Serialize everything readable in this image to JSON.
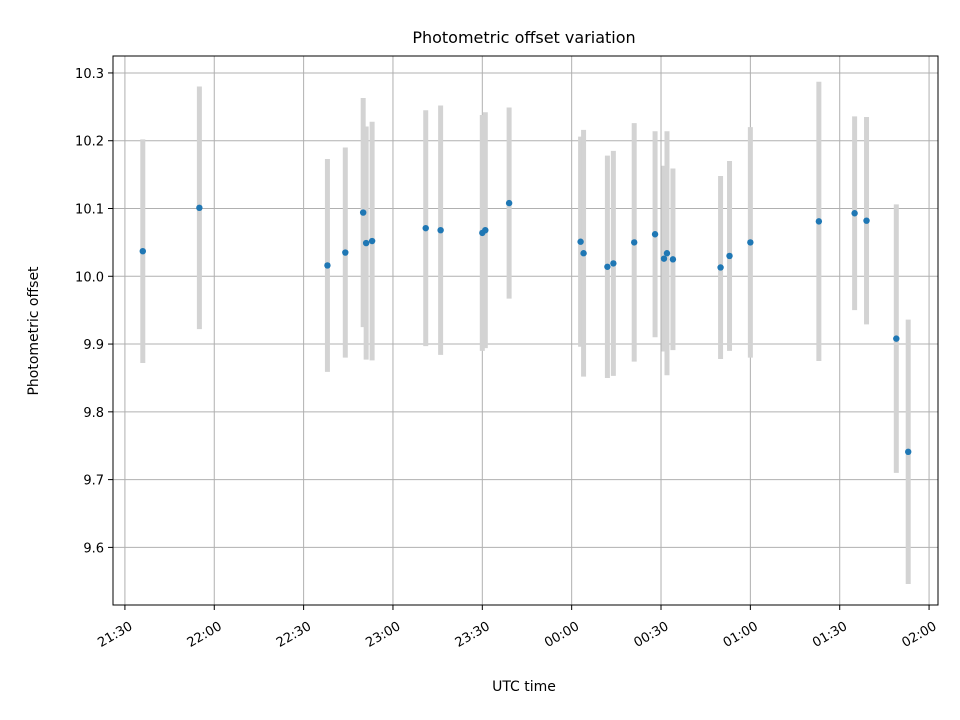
{
  "chart_data": {
    "type": "scatter",
    "title": "Photometric offset variation",
    "xlabel": "UTC time",
    "ylabel": "Photometric offset",
    "x_tick_labels": [
      "21:30",
      "22:00",
      "22:30",
      "23:00",
      "23:30",
      "00:00",
      "00:30",
      "01:00",
      "01:30",
      "02:00"
    ],
    "y_tick_labels": [
      "9.6",
      "9.7",
      "9.8",
      "9.9",
      "10.0",
      "10.1",
      "10.2",
      "10.3"
    ],
    "y_ticks": [
      9.6,
      9.7,
      9.8,
      9.9,
      10.0,
      10.1,
      10.2,
      10.3
    ],
    "xlim": [
      "21:26",
      "02:03"
    ],
    "ylim": [
      9.515,
      10.325
    ],
    "grid": true,
    "marker_color": "#1f77b4",
    "errorbar_color": "#d3d3d3",
    "points": [
      {
        "time": "21:36",
        "y": 10.037,
        "err": 0.165
      },
      {
        "time": "21:55",
        "y": 10.101,
        "err": 0.179
      },
      {
        "time": "22:38",
        "y": 10.016,
        "err": 0.157
      },
      {
        "time": "22:44",
        "y": 10.035,
        "err": 0.155
      },
      {
        "time": "22:50",
        "y": 10.094,
        "err": 0.169
      },
      {
        "time": "22:51",
        "y": 10.049,
        "err": 0.172
      },
      {
        "time": "22:53",
        "y": 10.052,
        "err": 0.176
      },
      {
        "time": "23:11",
        "y": 10.071,
        "err": 0.174
      },
      {
        "time": "23:16",
        "y": 10.068,
        "err": 0.184
      },
      {
        "time": "23:30",
        "y": 10.064,
        "err": 0.174
      },
      {
        "time": "23:31",
        "y": 10.068,
        "err": 0.174
      },
      {
        "time": "23:39",
        "y": 10.108,
        "err": 0.141
      },
      {
        "time": "00:03",
        "y": 10.051,
        "err": 0.155
      },
      {
        "time": "00:04",
        "y": 10.034,
        "err": 0.182
      },
      {
        "time": "00:12",
        "y": 10.014,
        "err": 0.164
      },
      {
        "time": "00:14",
        "y": 10.019,
        "err": 0.166
      },
      {
        "time": "00:21",
        "y": 10.05,
        "err": 0.176
      },
      {
        "time": "00:28",
        "y": 10.062,
        "err": 0.152
      },
      {
        "time": "00:31",
        "y": 10.026,
        "err": 0.137
      },
      {
        "time": "00:32",
        "y": 10.034,
        "err": 0.18
      },
      {
        "time": "00:34",
        "y": 10.025,
        "err": 0.134
      },
      {
        "time": "00:50",
        "y": 10.013,
        "err": 0.135
      },
      {
        "time": "00:53",
        "y": 10.03,
        "err": 0.14
      },
      {
        "time": "01:00",
        "y": 10.05,
        "err": 0.17
      },
      {
        "time": "01:23",
        "y": 10.081,
        "err": 0.206
      },
      {
        "time": "01:35",
        "y": 10.093,
        "err": 0.143
      },
      {
        "time": "01:39",
        "y": 10.082,
        "err": 0.153
      },
      {
        "time": "01:49",
        "y": 9.908,
        "err": 0.198
      },
      {
        "time": "01:53",
        "y": 9.741,
        "err": 0.195
      }
    ]
  }
}
